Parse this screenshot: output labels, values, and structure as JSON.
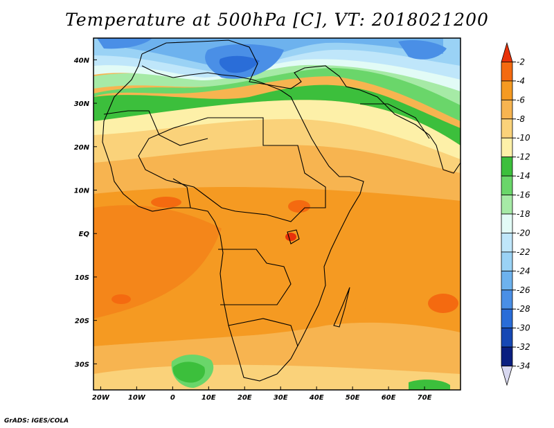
{
  "title": "Temperature at 500hPa [C], VT: 2018021200",
  "credit": "GrADS: IGES/COLA",
  "map": {
    "projection": "latlon",
    "lon_range": [
      -22,
      80
    ],
    "lat_range": [
      -36,
      45
    ],
    "lon_ticks": [
      {
        "value": -20,
        "label": "20W"
      },
      {
        "value": -10,
        "label": "10W"
      },
      {
        "value": 0,
        "label": "0"
      },
      {
        "value": 10,
        "label": "10E"
      },
      {
        "value": 20,
        "label": "20E"
      },
      {
        "value": 30,
        "label": "30E"
      },
      {
        "value": 40,
        "label": "40E"
      },
      {
        "value": 50,
        "label": "50E"
      },
      {
        "value": 60,
        "label": "60E"
      },
      {
        "value": 70,
        "label": "70E"
      }
    ],
    "lat_ticks": [
      {
        "value": 40,
        "label": "40N"
      },
      {
        "value": 30,
        "label": "30N"
      },
      {
        "value": 20,
        "label": "20N"
      },
      {
        "value": 10,
        "label": "10N"
      },
      {
        "value": 0,
        "label": "EQ"
      },
      {
        "value": -10,
        "label": "10S"
      },
      {
        "value": -20,
        "label": "20S"
      },
      {
        "value": -30,
        "label": "30S"
      }
    ]
  },
  "colorbar": {
    "levels": [
      "-2",
      "-4",
      "-6",
      "-8",
      "-10",
      "-12",
      "-14",
      "-16",
      "-18",
      "-20",
      "-22",
      "-24",
      "-26",
      "-28",
      "-30",
      "-32",
      "-34"
    ],
    "colors": [
      "#e8320a",
      "#f46a10",
      "#f59a22",
      "#f7b450",
      "#fad27a",
      "#fdf0a8",
      "#3cbf3c",
      "#6ad66a",
      "#a6eaa6",
      "#e2fbf6",
      "#bfe6fa",
      "#9ad2f5",
      "#6db2ee",
      "#4a8fe6",
      "#2a6dd8",
      "#1648b4",
      "#0a1f80",
      "#d8d8f0"
    ]
  }
}
